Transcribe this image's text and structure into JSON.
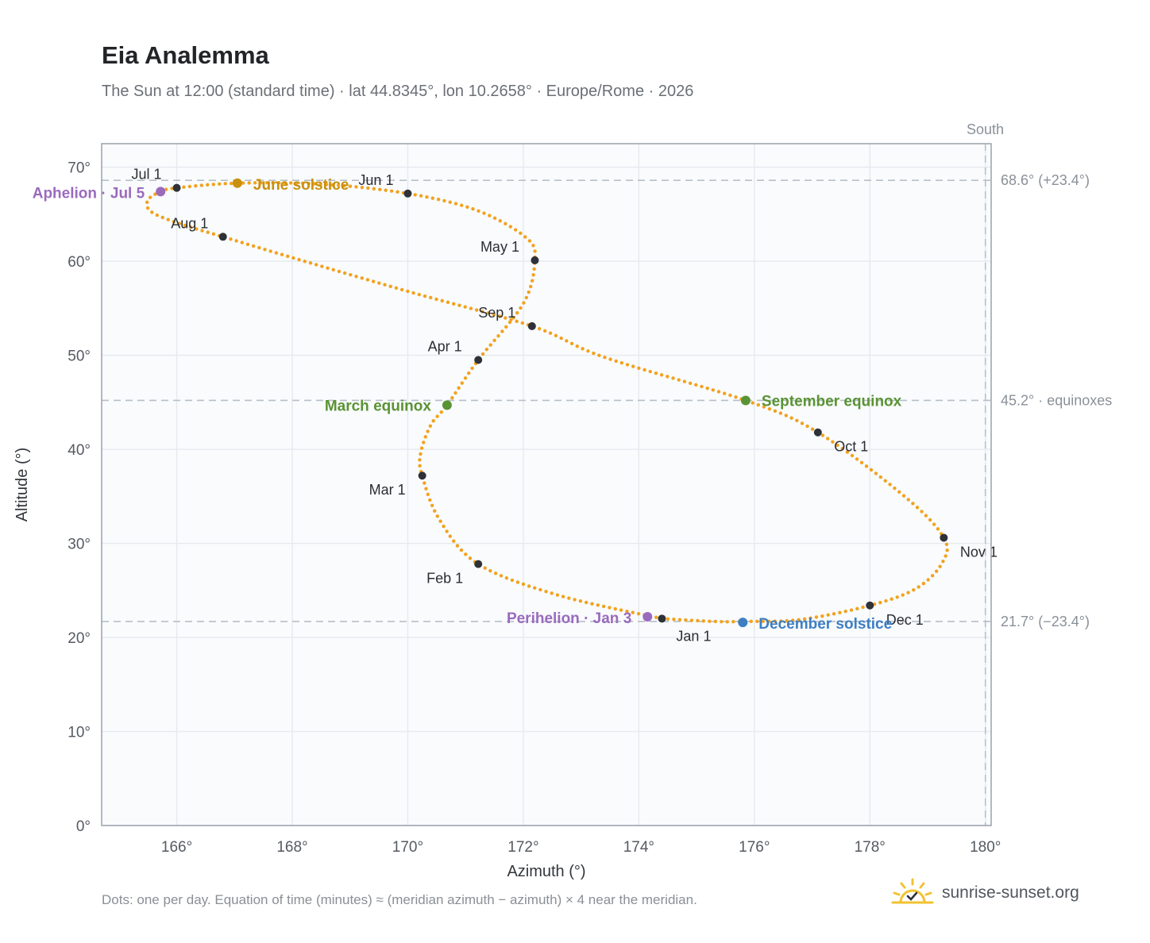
{
  "title": "Eia Analemma",
  "subtitle": "The Sun at 12:00 (standard time) · lat 44.8345°, lon 10.2658° · Europe/Rome · 2026",
  "footnote": "Dots: one per day. Equation of time (minutes) ≈ (meridian azimuth − azimuth) × 4 near the meridian.",
  "brand": {
    "text": "sunrise-sunset.org",
    "icon": "sun-check-icon"
  },
  "colors": {
    "curve": "#f2a21e",
    "month_dot": "#2e3238",
    "solstice_june": "#c9900e",
    "equinox": "#5a9334",
    "solstice_december": "#3d7fc2",
    "apsis": "#9a6bbd",
    "plot_bg": "#f9fbfd",
    "grid": "#e6eaee",
    "ref_line": "#b8bfc7"
  },
  "chart_data": {
    "type": "scatter",
    "title": "Eia Analemma",
    "xlabel": "Azimuth (°)",
    "ylabel": "Altitude (°)",
    "xlim": [
      164.7,
      180.1
    ],
    "ylim": [
      0,
      72.5
    ],
    "x_ticks": [
      "166°",
      "168°",
      "170°",
      "172°",
      "174°",
      "176°",
      "178°",
      "180°"
    ],
    "y_ticks": [
      "0°",
      "10°",
      "20°",
      "30°",
      "40°",
      "50°",
      "60°",
      "70°"
    ],
    "grid": true,
    "south_marker": {
      "label": "South",
      "azimuth": 180
    },
    "reference_lines": [
      {
        "altitude": 68.6,
        "label": "68.6° (+23.4°)"
      },
      {
        "altitude": 45.2,
        "label": "45.2° · equinoxes"
      },
      {
        "altitude": 21.7,
        "label": "21.7° (−23.4°)"
      }
    ],
    "path": [
      [
        174.4,
        22.0
      ],
      [
        175.3,
        21.7
      ],
      [
        175.85,
        21.7
      ],
      [
        176.8,
        21.9
      ],
      [
        178.0,
        23.4
      ],
      [
        178.8,
        25.2
      ],
      [
        179.25,
        27.9
      ],
      [
        179.28,
        30.6
      ],
      [
        178.6,
        35.0
      ],
      [
        177.1,
        41.8
      ],
      [
        175.85,
        45.2
      ],
      [
        173.4,
        49.8
      ],
      [
        172.15,
        53.1
      ],
      [
        170.0,
        56.8
      ],
      [
        168.1,
        60.2
      ],
      [
        166.8,
        62.6
      ],
      [
        166.0,
        64.1
      ],
      [
        165.55,
        65.3
      ],
      [
        165.5,
        66.5
      ],
      [
        165.72,
        67.4
      ],
      [
        166.0,
        67.8
      ],
      [
        167.05,
        68.3
      ],
      [
        168.5,
        68.2
      ],
      [
        170.0,
        67.2
      ],
      [
        171.2,
        65.4
      ],
      [
        172.05,
        62.5
      ],
      [
        172.2,
        60.1
      ],
      [
        172.0,
        55.5
      ],
      [
        171.22,
        49.5
      ],
      [
        170.68,
        44.7
      ],
      [
        170.4,
        42.6
      ],
      [
        170.22,
        39.5
      ],
      [
        170.25,
        37.2
      ],
      [
        170.55,
        32.5
      ],
      [
        171.22,
        27.8
      ],
      [
        172.6,
        24.5
      ],
      [
        174.4,
        22.0
      ]
    ],
    "months": [
      {
        "label": "Jan 1",
        "x": 174.4,
        "y": 22.0
      },
      {
        "label": "Feb 1",
        "x": 171.22,
        "y": 27.8
      },
      {
        "label": "Mar 1",
        "x": 170.25,
        "y": 37.2
      },
      {
        "label": "Apr 1",
        "x": 171.22,
        "y": 49.5
      },
      {
        "label": "May 1",
        "x": 172.2,
        "y": 60.1
      },
      {
        "label": "Jun 1",
        "x": 170.0,
        "y": 67.2
      },
      {
        "label": "Jul 1",
        "x": 166.0,
        "y": 67.8
      },
      {
        "label": "Aug 1",
        "x": 166.8,
        "y": 62.6
      },
      {
        "label": "Sep 1",
        "x": 172.15,
        "y": 53.1
      },
      {
        "label": "Oct 1",
        "x": 177.1,
        "y": 41.8
      },
      {
        "label": "Nov 1",
        "x": 179.28,
        "y": 30.6
      },
      {
        "label": "Dec 1",
        "x": 178.0,
        "y": 23.4
      }
    ],
    "events": [
      {
        "label": "June solstice",
        "x": 167.05,
        "y": 68.3,
        "kind": "solstice_june"
      },
      {
        "label": "March equinox",
        "x": 170.68,
        "y": 44.7,
        "kind": "equinox"
      },
      {
        "label": "September equinox",
        "x": 175.85,
        "y": 45.2,
        "kind": "equinox"
      },
      {
        "label": "December solstice",
        "x": 175.8,
        "y": 21.6,
        "kind": "solstice_december"
      },
      {
        "label": "Aphelion · Jul 5",
        "x": 165.72,
        "y": 67.4,
        "kind": "apsis"
      },
      {
        "label": "Perihelion · Jan 3",
        "x": 174.15,
        "y": 22.2,
        "kind": "apsis"
      }
    ]
  }
}
